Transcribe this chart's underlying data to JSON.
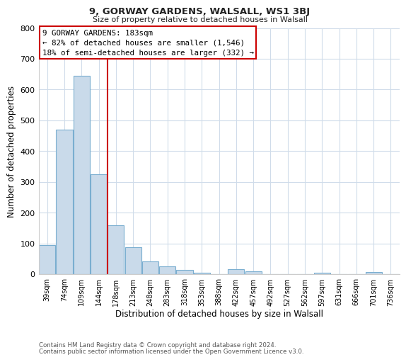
{
  "title": "9, GORWAY GARDENS, WALSALL, WS1 3BJ",
  "subtitle": "Size of property relative to detached houses in Walsall",
  "xlabel": "Distribution of detached houses by size in Walsall",
  "ylabel": "Number of detached properties",
  "bar_labels": [
    "39sqm",
    "74sqm",
    "109sqm",
    "144sqm",
    "178sqm",
    "213sqm",
    "248sqm",
    "283sqm",
    "318sqm",
    "353sqm",
    "388sqm",
    "422sqm",
    "457sqm",
    "492sqm",
    "527sqm",
    "562sqm",
    "597sqm",
    "631sqm",
    "666sqm",
    "701sqm",
    "736sqm"
  ],
  "bar_heights": [
    95,
    470,
    645,
    325,
    158,
    87,
    42,
    25,
    14,
    5,
    0,
    15,
    10,
    0,
    0,
    0,
    5,
    0,
    0,
    8,
    0
  ],
  "bar_color": "#c9daea",
  "bar_edge_color": "#7aaed0",
  "vline_x_index": 4,
  "vline_color": "#cc0000",
  "annotation_title": "9 GORWAY GARDENS: 183sqm",
  "annotation_line1": "← 82% of detached houses are smaller (1,546)",
  "annotation_line2": "18% of semi-detached houses are larger (332) →",
  "annotation_box_color": "#ffffff",
  "annotation_box_edge": "#cc0000",
  "ylim": [
    0,
    800
  ],
  "yticks": [
    0,
    100,
    200,
    300,
    400,
    500,
    600,
    700,
    800
  ],
  "footer1": "Contains HM Land Registry data © Crown copyright and database right 2024.",
  "footer2": "Contains public sector information licensed under the Open Government Licence v3.0.",
  "bg_color": "#ffffff",
  "grid_color": "#d0dcea"
}
